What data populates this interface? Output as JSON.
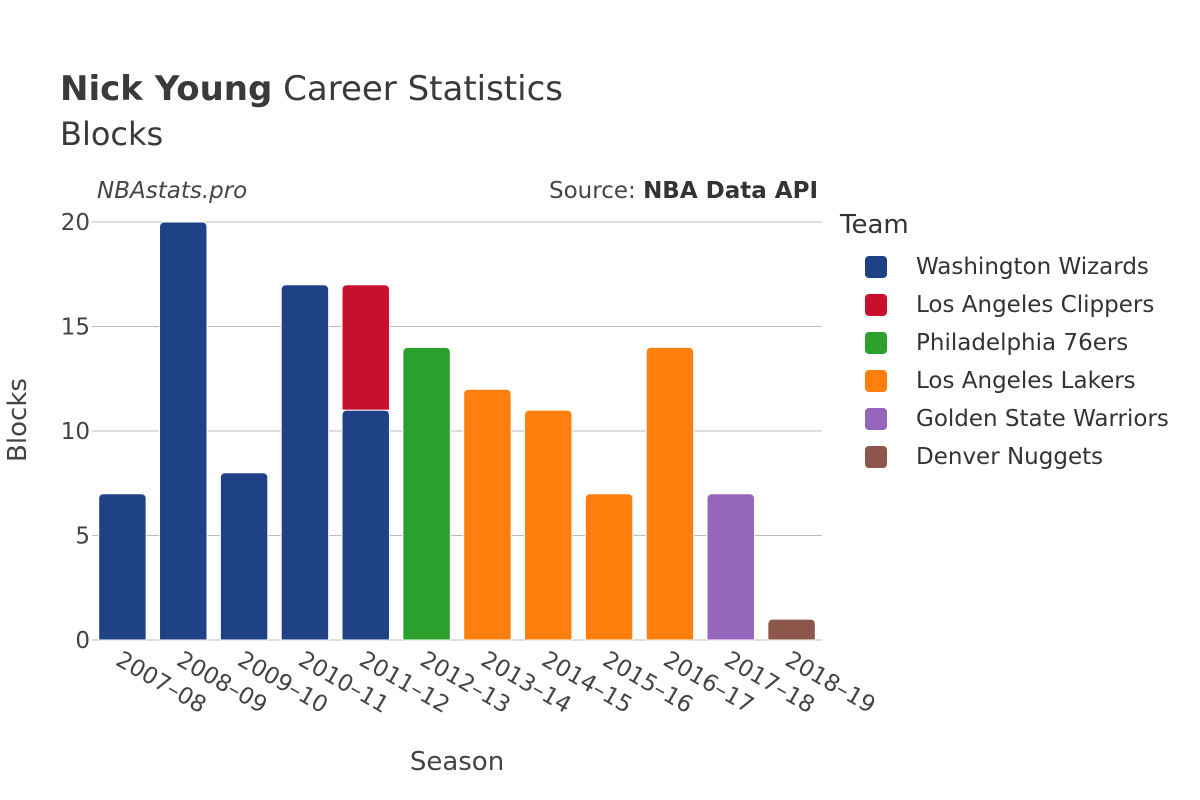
{
  "header": {
    "title_bold": "Nick Young",
    "title_rest": "Career Statistics",
    "subtitle": "Blocks",
    "site": "NBAstats.pro",
    "source_prefix": "Source: ",
    "source_name": "NBA Data API"
  },
  "legend": {
    "title": "Team",
    "items": [
      {
        "label": "Washington Wizards",
        "color": "#1f4287"
      },
      {
        "label": "Los Angeles Clippers",
        "color": "#c8102e"
      },
      {
        "label": "Philadelphia 76ers",
        "color": "#2ca02c"
      },
      {
        "label": "Los Angeles Lakers",
        "color": "#ff7f0e"
      },
      {
        "label": "Golden State Warriors",
        "color": "#9467bd"
      },
      {
        "label": "Denver Nuggets",
        "color": "#8c564b"
      }
    ]
  },
  "chart_data": {
    "type": "bar",
    "stacked": true,
    "xlabel": "Season",
    "ylabel": "Blocks",
    "ylim": [
      0,
      20
    ],
    "yticks": [
      0,
      5,
      10,
      15,
      20
    ],
    "grid": true,
    "legend_position": "right",
    "categories": [
      "2007–08",
      "2008–09",
      "2009–10",
      "2010–11",
      "2011–12",
      "2012–13",
      "2013–14",
      "2014–15",
      "2015–16",
      "2016–17",
      "2017–18",
      "2018–19"
    ],
    "series": [
      {
        "name": "Washington Wizards",
        "color": "#1f4287",
        "values": [
          7,
          20,
          8,
          17,
          11,
          0,
          0,
          0,
          0,
          0,
          0,
          0
        ]
      },
      {
        "name": "Los Angeles Clippers",
        "color": "#c8102e",
        "values": [
          0,
          0,
          0,
          0,
          6,
          0,
          0,
          0,
          0,
          0,
          0,
          0
        ]
      },
      {
        "name": "Philadelphia 76ers",
        "color": "#2ca02c",
        "values": [
          0,
          0,
          0,
          0,
          0,
          14,
          0,
          0,
          0,
          0,
          0,
          0
        ]
      },
      {
        "name": "Los Angeles Lakers",
        "color": "#ff7f0e",
        "values": [
          0,
          0,
          0,
          0,
          0,
          0,
          12,
          11,
          7,
          14,
          0,
          0
        ]
      },
      {
        "name": "Golden State Warriors",
        "color": "#9467bd",
        "values": [
          0,
          0,
          0,
          0,
          0,
          0,
          0,
          0,
          0,
          0,
          7,
          0
        ]
      },
      {
        "name": "Denver Nuggets",
        "color": "#8c564b",
        "values": [
          0,
          0,
          0,
          0,
          0,
          0,
          0,
          0,
          0,
          0,
          0,
          1
        ]
      }
    ]
  }
}
